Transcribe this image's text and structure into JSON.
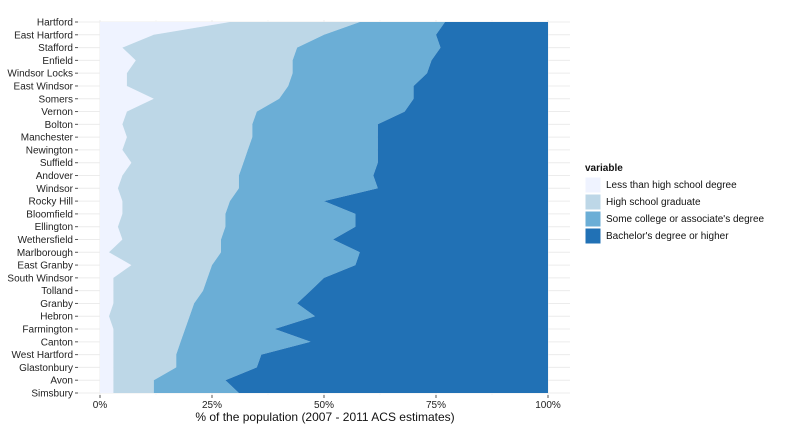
{
  "chart_data": {
    "type": "area",
    "orientation": "horizontal-stacked-percent",
    "xlabel": "% of the population (2007 - 2011 ACS estimates)",
    "ylabel": "",
    "xlim": [
      0,
      100
    ],
    "x_ticks": [
      "0%",
      "25%",
      "50%",
      "75%",
      "100%"
    ],
    "categories": [
      "Hartford",
      "East Hartford",
      "Stafford",
      "Enfield",
      "Windsor Locks",
      "East Windsor",
      "Somers",
      "Vernon",
      "Bolton",
      "Manchester",
      "Newington",
      "Suffield",
      "Andover",
      "Windsor",
      "Rocky Hill",
      "Bloomfield",
      "Ellington",
      "Wethersfield",
      "Marlborough",
      "East Granby",
      "South Windsor",
      "Tolland",
      "Granby",
      "Hebron",
      "Farmington",
      "Canton",
      "West Hartford",
      "Glastonbury",
      "Avon",
      "Simsbury"
    ],
    "legend": {
      "title": "variable",
      "position": "right"
    },
    "grid": true,
    "series": [
      {
        "name": "Less than high school degree",
        "color": "#eff3ff",
        "values": [
          29,
          12,
          5,
          8,
          6,
          6,
          12,
          6,
          5,
          6,
          5,
          7,
          5,
          4,
          5,
          5,
          4,
          5,
          2,
          7,
          3,
          3,
          3,
          2,
          3,
          3,
          3,
          3,
          3,
          3
        ]
      },
      {
        "name": "High school graduate",
        "color": "#bdd7e7",
        "values": [
          29,
          38,
          39,
          35,
          37,
          36,
          28,
          29,
          29,
          28,
          28,
          25,
          26,
          27,
          24,
          23,
          24,
          22,
          25,
          18,
          21,
          20,
          18,
          18,
          16,
          15,
          14,
          14,
          9,
          9
        ]
      },
      {
        "name": "Some college or associate's degree",
        "color": "#6baed6",
        "values": [
          19,
          25,
          32,
          31,
          30,
          28,
          30,
          33,
          28,
          28,
          29,
          30,
          30,
          31,
          21,
          29,
          29,
          25,
          31,
          32,
          26,
          24,
          23,
          28,
          20,
          29,
          19,
          18,
          16,
          19
        ]
      },
      {
        "name": "Bachelor's degree or higher",
        "color": "#2171b5",
        "values": [
          23,
          25,
          24,
          26,
          27,
          30,
          30,
          32,
          38,
          38,
          38,
          38,
          39,
          38,
          50,
          43,
          43,
          48,
          42,
          43,
          50,
          53,
          56,
          52,
          61,
          53,
          64,
          65,
          72,
          69
        ]
      }
    ]
  }
}
